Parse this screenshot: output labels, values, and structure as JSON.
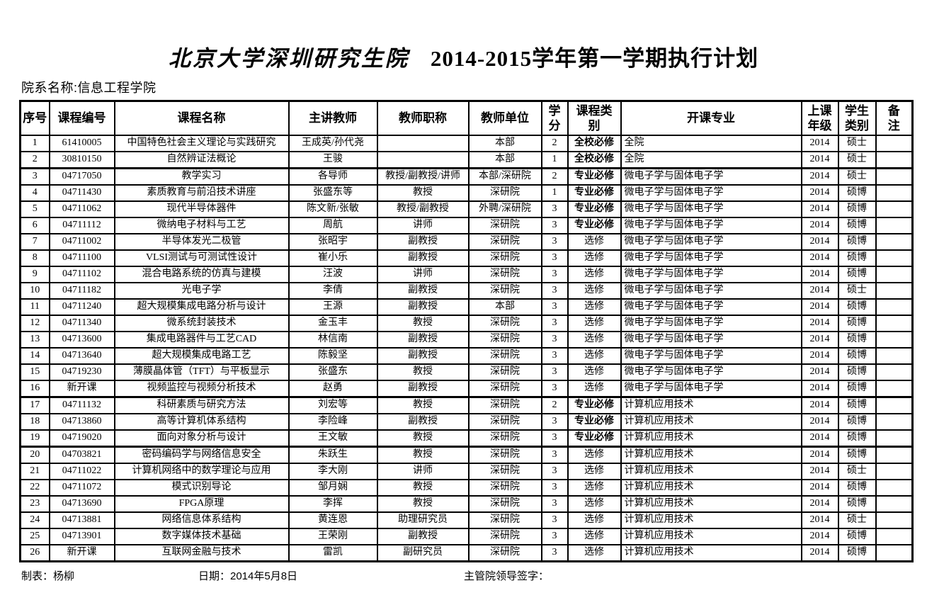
{
  "title": {
    "part1": "北京大学深圳研究生院",
    "part2": "2014-2015学年第一学期执行计划"
  },
  "department_label": "院系名称:信息工程学院",
  "colors": {
    "text": "#000000",
    "background": "#ffffff",
    "border": "#000000"
  },
  "table": {
    "headers": [
      "序号",
      "课程编号",
      "课程名称",
      "主讲教师",
      "教师职称",
      "教师单位",
      "学\n分",
      "课程类\n别",
      "开课专业",
      "上课\n年级",
      "学生\n类别",
      "备\n注"
    ],
    "group_breaks": [
      2,
      16,
      19
    ],
    "rows": [
      [
        "1",
        "61410005",
        "中国特色社会主义理论与实践研究",
        "王成英/孙代尧",
        "",
        "本部",
        "2",
        "全校必修",
        "全院",
        "2014",
        "硕士",
        ""
      ],
      [
        "2",
        "30810150",
        "自然辨证法概论",
        "王骏",
        "",
        "本部",
        "1",
        "全校必修",
        "全院",
        "2014",
        "硕士",
        ""
      ],
      [
        "3",
        "04717050",
        "教学实习",
        "各导师",
        "教授/副教授/讲师",
        "本部/深研院",
        "2",
        "专业必修",
        "微电子学与固体电子学",
        "2014",
        "硕士",
        ""
      ],
      [
        "4",
        "04711430",
        "素质教育与前沿技术讲座",
        "张盛东等",
        "教授",
        "深研院",
        "1",
        "专业必修",
        "微电子学与固体电子学",
        "2014",
        "硕博",
        ""
      ],
      [
        "5",
        "04711062",
        "现代半导体器件",
        "陈文新/张敏",
        "教授/副教授",
        "外聘/深研院",
        "3",
        "专业必修",
        "微电子学与固体电子学",
        "2014",
        "硕博",
        ""
      ],
      [
        "6",
        "04711112",
        "微纳电子材料与工艺",
        "周航",
        "讲师",
        "深研院",
        "3",
        "专业必修",
        "微电子学与固体电子学",
        "2014",
        "硕博",
        ""
      ],
      [
        "7",
        "04711002",
        "半导体发光二极管",
        "张昭宇",
        "副教授",
        "深研院",
        "3",
        "选修",
        "微电子学与固体电子学",
        "2014",
        "硕博",
        ""
      ],
      [
        "8",
        "04711100",
        "VLSI测试与可测试性设计",
        "崔小乐",
        "副教授",
        "深研院",
        "3",
        "选修",
        "微电子学与固体电子学",
        "2014",
        "硕博",
        ""
      ],
      [
        "9",
        "04711102",
        "混合电路系统的仿真与建模",
        "汪波",
        "讲师",
        "深研院",
        "3",
        "选修",
        "微电子学与固体电子学",
        "2014",
        "硕博",
        ""
      ],
      [
        "10",
        "04711182",
        "光电子学",
        "李倩",
        "副教授",
        "深研院",
        "3",
        "选修",
        "微电子学与固体电子学",
        "2014",
        "硕士",
        ""
      ],
      [
        "11",
        "04711240",
        "超大规模集成电路分析与设计",
        "王源",
        "副教授",
        "本部",
        "3",
        "选修",
        "微电子学与固体电子学",
        "2014",
        "硕博",
        ""
      ],
      [
        "12",
        "04711340",
        "微系统封装技术",
        "金玉丰",
        "教授",
        "深研院",
        "3",
        "选修",
        "微电子学与固体电子学",
        "2014",
        "硕博",
        ""
      ],
      [
        "13",
        "04713600",
        "集成电路器件与工艺CAD",
        "林信南",
        "副教授",
        "深研院",
        "3",
        "选修",
        "微电子学与固体电子学",
        "2014",
        "硕博",
        ""
      ],
      [
        "14",
        "04713640",
        "超大规模集成电路工艺",
        "陈毅坚",
        "副教授",
        "深研院",
        "3",
        "选修",
        "微电子学与固体电子学",
        "2014",
        "硕博",
        ""
      ],
      [
        "15",
        "04719230",
        "薄膜晶体管（TFT）与平板显示",
        "张盛东",
        "教授",
        "深研院",
        "3",
        "选修",
        "微电子学与固体电子学",
        "2014",
        "硕博",
        ""
      ],
      [
        "16",
        "新开课",
        "视频监控与视频分析技术",
        "赵勇",
        "副教授",
        "深研院",
        "3",
        "选修",
        "微电子学与固体电子学",
        "2014",
        "硕博",
        ""
      ],
      [
        "17",
        "04711132",
        "科研素质与研究方法",
        "刘宏等",
        "教授",
        "深研院",
        "2",
        "专业必修",
        "计算机应用技术",
        "2014",
        "硕博",
        ""
      ],
      [
        "18",
        "04713860",
        "高等计算机体系结构",
        "李险峰",
        "副教授",
        "深研院",
        "3",
        "专业必修",
        "计算机应用技术",
        "2014",
        "硕博",
        ""
      ],
      [
        "19",
        "04719020",
        "面向对象分析与设计",
        "王文敏",
        "教授",
        "深研院",
        "3",
        "专业必修",
        "计算机应用技术",
        "2014",
        "硕博",
        ""
      ],
      [
        "20",
        "04703821",
        "密码编码学与网络信息安全",
        "朱跃生",
        "教授",
        "深研院",
        "3",
        "选修",
        "计算机应用技术",
        "2014",
        "硕博",
        ""
      ],
      [
        "21",
        "04711022",
        "计算机网络中的数学理论与应用",
        "李大刚",
        "讲师",
        "深研院",
        "3",
        "选修",
        "计算机应用技术",
        "2014",
        "硕士",
        ""
      ],
      [
        "22",
        "04711072",
        "模式识别导论",
        "邹月娴",
        "教授",
        "深研院",
        "3",
        "选修",
        "计算机应用技术",
        "2014",
        "硕博",
        ""
      ],
      [
        "23",
        "04713690",
        "FPGA原理",
        "李挥",
        "教授",
        "深研院",
        "3",
        "选修",
        "计算机应用技术",
        "2014",
        "硕博",
        ""
      ],
      [
        "24",
        "04713881",
        "网络信息体系结构",
        "黄连恩",
        "助理研究员",
        "深研院",
        "3",
        "选修",
        "计算机应用技术",
        "2014",
        "硕士",
        ""
      ],
      [
        "25",
        "04713901",
        "数字媒体技术基础",
        "王荣刚",
        "副教授",
        "深研院",
        "3",
        "选修",
        "计算机应用技术",
        "2014",
        "硕博",
        ""
      ],
      [
        "26",
        "新开课",
        "互联网金融与技术",
        "雷凯",
        "副研究员",
        "深研院",
        "3",
        "选修",
        "计算机应用技术",
        "2014",
        "硕博",
        ""
      ]
    ]
  },
  "footer": {
    "maker": "制表：杨柳",
    "date": "日期：2014年5月8日",
    "sign": "主管院领导签字："
  }
}
